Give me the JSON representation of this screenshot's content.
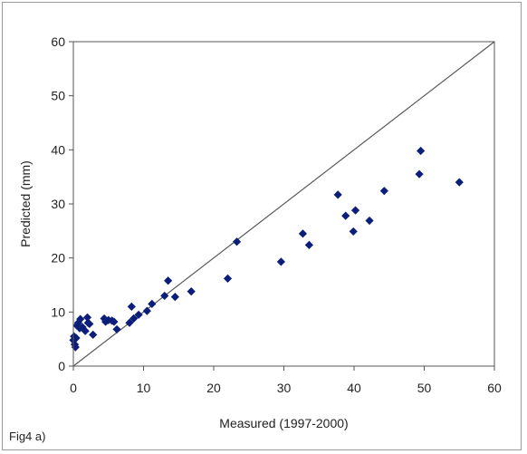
{
  "chart_data": {
    "type": "scatter",
    "title": "",
    "xlabel": "Measured (1997-2000)",
    "ylabel": "Predicted (mm)",
    "xlim": [
      0,
      60
    ],
    "ylim": [
      0,
      60
    ],
    "xticks": [
      "0",
      "10",
      "20",
      "30",
      "40",
      "50",
      "60"
    ],
    "yticks": [
      "0",
      "10",
      "20",
      "30",
      "40",
      "50",
      "60"
    ],
    "grid": false,
    "legend": "none",
    "reference_line": {
      "from": [
        0,
        0
      ],
      "to": [
        60,
        60
      ]
    },
    "marker": "diamond",
    "marker_color": "#0b1f7a",
    "line_color": "#5a5a5a",
    "points": [
      [
        0.0,
        4.8
      ],
      [
        0.2,
        4.0
      ],
      [
        0.3,
        3.5
      ],
      [
        0.4,
        5.2
      ],
      [
        0.1,
        5.5
      ],
      [
        0.5,
        7.5
      ],
      [
        0.7,
        8.0
      ],
      [
        1.0,
        8.7
      ],
      [
        0.9,
        7.0
      ],
      [
        1.3,
        7.2
      ],
      [
        1.7,
        6.5
      ],
      [
        2.0,
        9.0
      ],
      [
        2.1,
        8.0
      ],
      [
        2.3,
        7.8
      ],
      [
        2.8,
        5.8
      ],
      [
        4.4,
        8.8
      ],
      [
        4.6,
        8.2
      ],
      [
        5.0,
        8.5
      ],
      [
        5.5,
        8.4
      ],
      [
        5.8,
        8.2
      ],
      [
        6.2,
        6.8
      ],
      [
        8.0,
        8.0
      ],
      [
        8.3,
        11.0
      ],
      [
        8.6,
        8.8
      ],
      [
        9.3,
        9.5
      ],
      [
        10.5,
        10.2
      ],
      [
        11.2,
        11.5
      ],
      [
        13.0,
        13.0
      ],
      [
        13.5,
        15.8
      ],
      [
        14.5,
        12.8
      ],
      [
        16.8,
        13.8
      ],
      [
        22.0,
        16.2
      ],
      [
        23.3,
        23.0
      ],
      [
        29.6,
        19.3
      ],
      [
        32.7,
        24.5
      ],
      [
        33.6,
        22.4
      ],
      [
        37.7,
        31.7
      ],
      [
        38.8,
        27.8
      ],
      [
        39.9,
        24.9
      ],
      [
        40.2,
        28.8
      ],
      [
        42.2,
        26.9
      ],
      [
        44.3,
        32.4
      ],
      [
        49.3,
        35.5
      ],
      [
        49.5,
        39.8
      ],
      [
        55.0,
        34.0
      ]
    ]
  },
  "figure_caption": "Fig4 a)"
}
